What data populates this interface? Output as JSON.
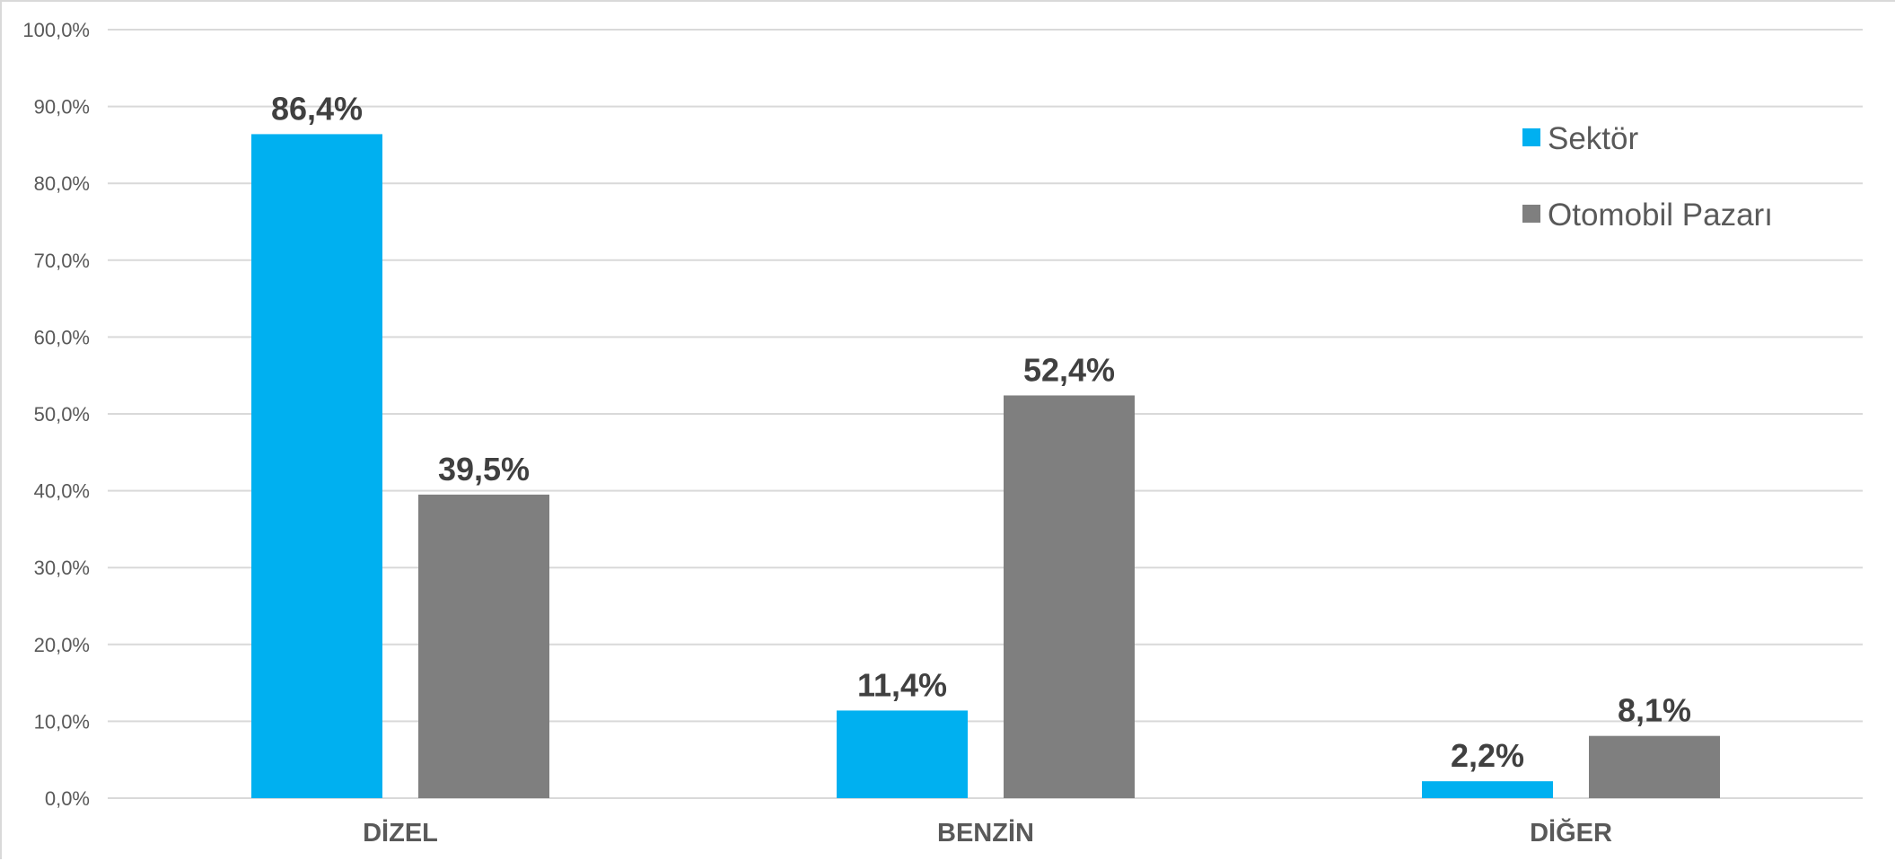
{
  "chart_data": {
    "type": "bar",
    "categories": [
      "DİZEL",
      "BENZİN",
      "DİĞER"
    ],
    "series": [
      {
        "name": "Sektör",
        "color": "#00b0f0",
        "values": [
          86.4,
          11.4,
          2.2
        ],
        "labels": [
          "86,4%",
          "11,4%",
          "2,2%"
        ]
      },
      {
        "name": "Otomobil Pazarı",
        "color": "#7f7f7f",
        "values": [
          39.5,
          52.4,
          8.1
        ],
        "labels": [
          "39,5%",
          "52,4%",
          "8,1%"
        ]
      }
    ],
    "ylim": [
      0,
      100
    ],
    "yticks": [
      0,
      10,
      20,
      30,
      40,
      50,
      60,
      70,
      80,
      90,
      100
    ],
    "ytick_labels": [
      "0,0%",
      "10,0%",
      "20,0%",
      "30,0%",
      "40,0%",
      "50,0%",
      "60,0%",
      "70,0%",
      "80,0%",
      "90,0%",
      "100,0%"
    ],
    "grid": true,
    "legend_position": "top-right"
  }
}
